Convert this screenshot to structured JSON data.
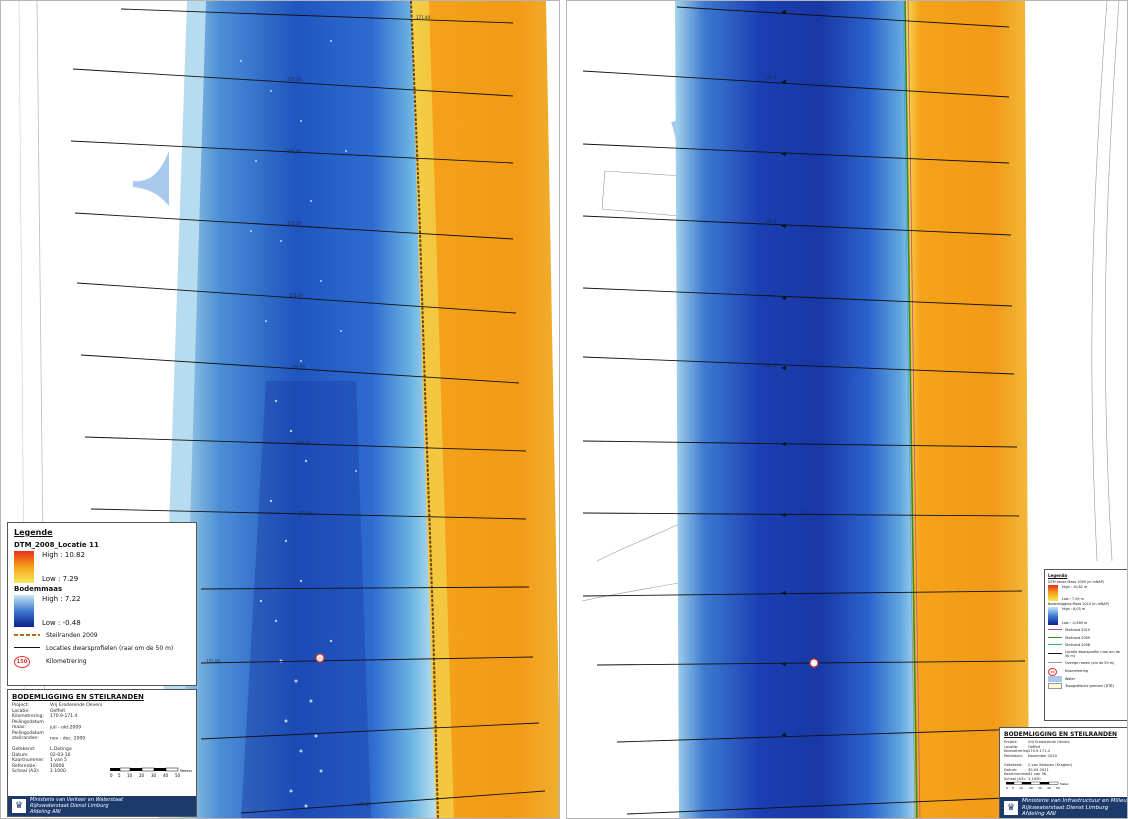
{
  "left_map": {
    "legend": {
      "title": "Legende",
      "layer1_name": "DTM_2008_Locatie 11",
      "layer1_high": "High : 10.82",
      "layer1_low": "Low : 7.29",
      "layer2_name": "Bodemmaas",
      "layer2_high": "High : 7.22",
      "layer2_low": "Low : -0.48",
      "item_steilranden": "Steilranden 2009",
      "item_locaties": "Locaties dwarsprofielen (raai om de 50 m)",
      "item_km": "Kilometrering",
      "km_badge": "150"
    },
    "title_block": {
      "heading": "BODEMLIGGING EN STEILRANDEN",
      "rows": [
        {
          "k": "Project:",
          "v": "Vrij Eroderende Oevers"
        },
        {
          "k": "Locatie:",
          "v": "Oeffelt"
        },
        {
          "k": "Kilometrering:",
          "v": "170.9-171.4"
        },
        {
          "k": "Peilingsdatum maas:",
          "v": "juli - okt 2009"
        },
        {
          "k": "Peilingsdatum steilranden:",
          "v": "nov - dec. 2009"
        },
        {
          "k": "",
          "v": ""
        },
        {
          "k": "Getekend:",
          "v": "L.Dotinga"
        },
        {
          "k": "Datum:",
          "v": "02-03-10"
        },
        {
          "k": "Kaartnummer:",
          "v": "1 van 5"
        },
        {
          "k": "Referentie:",
          "v": "10000"
        },
        {
          "k": "Schaal (A3):",
          "v": "1:1000"
        }
      ],
      "scale_ticks": [
        "0",
        "5",
        "10",
        "20",
        "30",
        "40",
        "50"
      ],
      "scale_unit": "Meters",
      "ministry_line1": "Ministerie van Verkeer en Waterstaat",
      "ministry_line2": "Rijkswaterstaat Dienst Limburg",
      "ministry_line3": "Afdeling ANI"
    },
    "km_labels": [
      "171.40",
      "171.35",
      "171.30",
      "171.25",
      "171.20",
      "171.15",
      "171.10",
      "171.05",
      "171.00",
      "170.95"
    ],
    "km_marker": "150"
  },
  "right_map": {
    "legend": {
      "title": "Legenda",
      "layer1_name": "DTM oever Maas 2009 (in mNAP)",
      "layer1_high": "High : 10,82 m",
      "layer1_low": "Low : 7,29 m",
      "layer2_name": "Bodemligging Maas 2010 (in mNAP)",
      "layer2_high": "High : 6,03 m",
      "layer2_low": "Low : -0,469 m",
      "item_s2010": "Steilrand 2010",
      "item_s2009": "Steilrand 2009",
      "item_s2008": "Steilrand 2008",
      "item_locaties": "Locatie dwarsprofiel (raai om de 50 m)",
      "item_overige": "Overige raaien (om de 50 m)",
      "item_km": "Kilometrering",
      "km_badge": "70",
      "item_water": "Water",
      "item_topo": "Topografische grenzen (DTB)"
    },
    "title_block": {
      "heading": "BODEMLIGGING EN STEILRANDEN",
      "rows": [
        {
          "k": "Project:",
          "v": "Vrij Eroderende Oevers"
        },
        {
          "k": "Locatie:",
          "v": "Oeffelt"
        },
        {
          "k": "Kilometrering:",
          "v": "170.9-171.4"
        },
        {
          "k": "Peildatum:",
          "v": "November 2010"
        },
        {
          "k": "",
          "v": ""
        },
        {
          "k": "Getekend:",
          "v": "C.van Kempen (Kragten)"
        },
        {
          "k": "Datum:",
          "v": "30-05-2011"
        },
        {
          "k": "Kaartnummer:",
          "v": "21 van 36"
        },
        {
          "k": "Schaal (A3):",
          "v": "1:1000"
        }
      ],
      "scale_ticks": [
        "0",
        "5",
        "10",
        "20",
        "30",
        "40",
        "50"
      ],
      "scale_unit": "Meter",
      "ministry_line1": "Ministerie van Infrastructuur en Milieu",
      "ministry_line2": "Rijkswaterstaat Dienst Limburg",
      "ministry_line3": "Afdeling ANI"
    },
    "km_labels": [
      "171.4",
      "171.3",
      "171.2",
      "171.1"
    ]
  },
  "colors": {
    "bank_high": "#e8311d",
    "bank_mid": "#f5a21a",
    "bank_low": "#f7e85a",
    "bed_high": "#c8e6f2",
    "bed_mid": "#3d7ad1",
    "bed_low": "#0c1f8f",
    "steilrand_2009": "#b36b16",
    "steilrand_2010": "#c04a9a",
    "steilrand_2008": "#3aa0c8",
    "water": "#a9c9ec"
  }
}
